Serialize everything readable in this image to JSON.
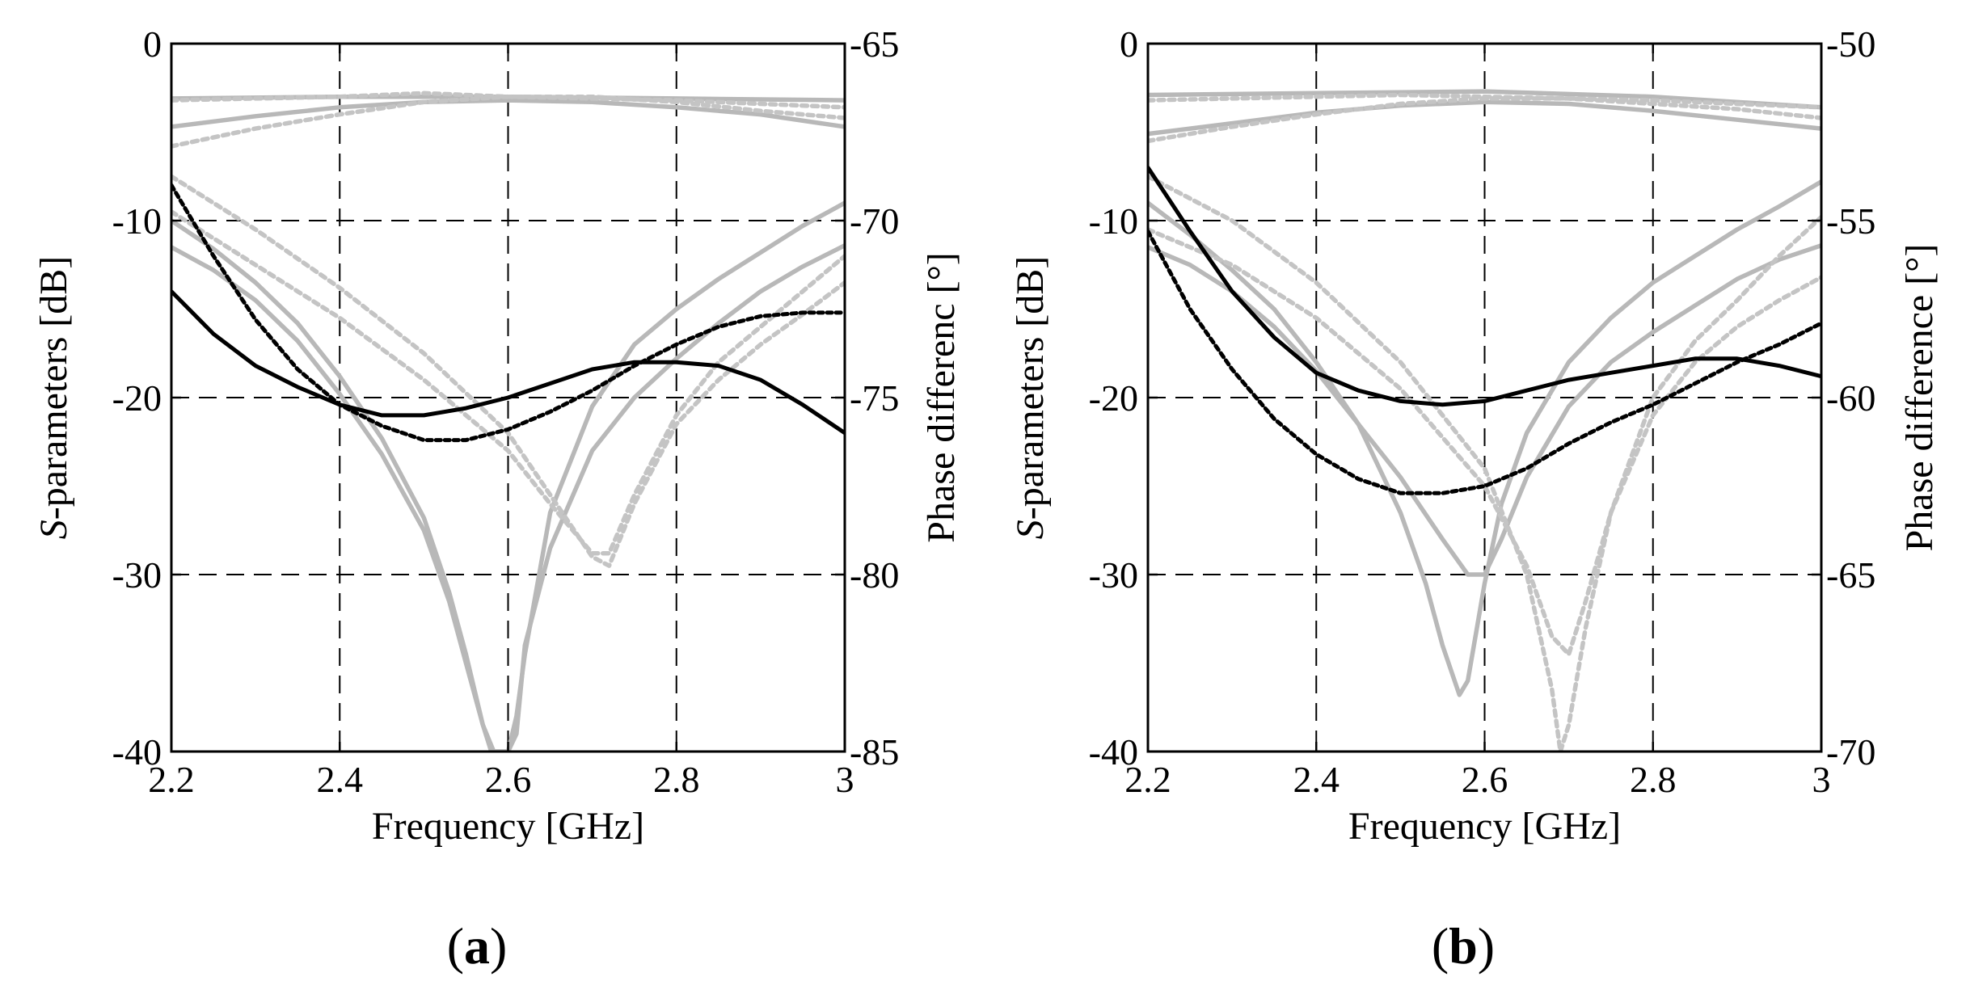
{
  "figure": {
    "panels": [
      "a",
      "b"
    ]
  },
  "chart_data": [
    {
      "type": "line",
      "panel_label": "a",
      "xlabel": "Frequency [GHz]",
      "ylabel_italic": "S",
      "ylabel_rest": "-parameters [dB]",
      "y2label": "Phase differenc [°]",
      "xlim": [
        2.2,
        3.0
      ],
      "ylim": [
        -40,
        0
      ],
      "y2lim": [
        -85,
        -65
      ],
      "xticks": [
        2.2,
        2.4,
        2.6,
        2.8,
        3.0
      ],
      "xtick_labels": [
        "2.2",
        "2.4",
        "2.6",
        "2.8",
        "3"
      ],
      "yticks": [
        0,
        -10,
        -20,
        -30,
        -40
      ],
      "ytick_labels": [
        "0",
        "-10",
        "-20",
        "-30",
        "-40"
      ],
      "y2ticks": [
        -65,
        -70,
        -75,
        -80,
        -85
      ],
      "y2tick_labels": [
        "-65",
        "-70",
        "-75",
        "-80",
        "-85"
      ],
      "grid": true,
      "series": [
        {
          "name": "S-solid-top-1",
          "axis": "left",
          "color": "#b8b8b8",
          "style": "solid",
          "x": [
            2.2,
            2.4,
            2.6,
            2.8,
            3.0
          ],
          "y": [
            -3.1,
            -3.0,
            -3.0,
            -3.1,
            -3.2
          ]
        },
        {
          "name": "S-solid-top-2",
          "axis": "left",
          "color": "#b8b8b8",
          "style": "solid",
          "x": [
            2.2,
            2.3,
            2.4,
            2.5,
            2.6,
            2.7,
            2.8,
            2.9,
            3.0
          ],
          "y": [
            -4.7,
            -4.1,
            -3.6,
            -3.3,
            -3.2,
            -3.3,
            -3.6,
            -4.0,
            -4.7
          ]
        },
        {
          "name": "S-dotted-top-1",
          "axis": "left",
          "color": "#c4c4c4",
          "style": "dotted",
          "x": [
            2.2,
            2.3,
            2.4,
            2.5,
            2.6,
            2.7,
            2.8,
            2.9,
            3.0
          ],
          "y": [
            -5.8,
            -4.8,
            -4.0,
            -3.3,
            -3.0,
            -3.0,
            -3.3,
            -3.8,
            -4.2
          ]
        },
        {
          "name": "S-dotted-top-2",
          "axis": "left",
          "color": "#c4c4c4",
          "style": "dotted",
          "x": [
            2.2,
            2.4,
            2.5,
            2.6,
            2.7,
            2.8,
            2.9,
            3.0
          ],
          "y": [
            -3.2,
            -3.0,
            -2.8,
            -3.0,
            -3.1,
            -3.2,
            -3.4,
            -3.6
          ]
        },
        {
          "name": "S-solid-dip-1",
          "axis": "left",
          "color": "#b8b8b8",
          "style": "solid",
          "x": [
            2.2,
            2.25,
            2.3,
            2.35,
            2.4,
            2.45,
            2.5,
            2.53,
            2.55,
            2.57,
            2.583,
            2.59,
            2.6,
            2.61,
            2.62,
            2.65,
            2.7,
            2.75,
            2.8,
            2.85,
            2.9,
            2.95,
            3.0
          ],
          "y": [
            -11.5,
            -12.8,
            -14.5,
            -16.8,
            -19.8,
            -23.2,
            -27.5,
            -31.5,
            -35.0,
            -38.5,
            -40.0,
            -40.0,
            -40.0,
            -39.0,
            -34.0,
            -28.5,
            -23.0,
            -20.0,
            -17.8,
            -15.8,
            -14.0,
            -12.6,
            -11.4
          ]
        },
        {
          "name": "S-solid-dip-2",
          "axis": "left",
          "color": "#b8b8b8",
          "style": "solid",
          "x": [
            2.2,
            2.25,
            2.3,
            2.35,
            2.4,
            2.45,
            2.5,
            2.53,
            2.55,
            2.57,
            2.58,
            2.6,
            2.61,
            2.62,
            2.65,
            2.7,
            2.75,
            2.8,
            2.85,
            2.9,
            2.95,
            3.0
          ],
          "y": [
            -10.0,
            -11.6,
            -13.5,
            -15.8,
            -18.8,
            -22.3,
            -26.8,
            -31.0,
            -34.5,
            -38.5,
            -40.0,
            -40.0,
            -38.0,
            -34.5,
            -26.5,
            -20.5,
            -17.0,
            -15.0,
            -13.3,
            -11.8,
            -10.3,
            -9.0
          ]
        },
        {
          "name": "S-dotted-dip-1",
          "axis": "left",
          "color": "#c4c4c4",
          "style": "dotted",
          "x": [
            2.2,
            2.3,
            2.4,
            2.5,
            2.6,
            2.65,
            2.7,
            2.72,
            2.75,
            2.8,
            2.85,
            2.9,
            2.95,
            3.0
          ],
          "y": [
            -7.5,
            -10.5,
            -13.8,
            -17.5,
            -22.0,
            -25.5,
            -29.0,
            -29.5,
            -26.0,
            -21.5,
            -19.0,
            -17.0,
            -15.3,
            -13.5
          ]
        },
        {
          "name": "S-dotted-dip-2",
          "axis": "left",
          "color": "#c4c4c4",
          "style": "dotted",
          "x": [
            2.2,
            2.3,
            2.4,
            2.5,
            2.6,
            2.65,
            2.7,
            2.72,
            2.75,
            2.8,
            2.85,
            2.9,
            2.95,
            3.0
          ],
          "y": [
            -9.5,
            -12.5,
            -15.5,
            -19.0,
            -23.0,
            -26.0,
            -28.8,
            -28.8,
            -25.5,
            -21.0,
            -18.0,
            -16.0,
            -14.0,
            -12.0
          ]
        },
        {
          "name": "Phase-solid",
          "axis": "right",
          "color": "#000000",
          "style": "solid",
          "x": [
            2.2,
            2.25,
            2.3,
            2.35,
            2.4,
            2.45,
            2.5,
            2.55,
            2.6,
            2.65,
            2.7,
            2.75,
            2.8,
            2.85,
            2.9,
            2.95,
            3.0
          ],
          "y": [
            -72.0,
            -73.2,
            -74.1,
            -74.7,
            -75.2,
            -75.5,
            -75.5,
            -75.3,
            -75.0,
            -74.6,
            -74.2,
            -74.0,
            -74.0,
            -74.1,
            -74.5,
            -75.2,
            -76.0
          ]
        },
        {
          "name": "Phase-dotted",
          "axis": "right",
          "color": "#000000",
          "style": "dotted",
          "x": [
            2.2,
            2.25,
            2.3,
            2.35,
            2.4,
            2.45,
            2.5,
            2.55,
            2.6,
            2.65,
            2.7,
            2.75,
            2.8,
            2.85,
            2.9,
            2.95,
            3.0
          ],
          "y": [
            -69.0,
            -71.0,
            -72.8,
            -74.2,
            -75.2,
            -75.8,
            -76.2,
            -76.2,
            -75.9,
            -75.4,
            -74.8,
            -74.1,
            -73.5,
            -73.0,
            -72.7,
            -72.6,
            -72.6
          ]
        }
      ]
    },
    {
      "type": "line",
      "panel_label": "b",
      "xlabel": "Frequency [GHz]",
      "ylabel_italic": "S",
      "ylabel_rest": "-parameters [dB]",
      "y2label": "Phase difference [°]",
      "xlim": [
        2.2,
        3.0
      ],
      "ylim": [
        -40,
        0
      ],
      "y2lim": [
        -70,
        -50
      ],
      "xticks": [
        2.2,
        2.4,
        2.6,
        2.8,
        3.0
      ],
      "xtick_labels": [
        "2.2",
        "2.4",
        "2.6",
        "2.8",
        "3"
      ],
      "yticks": [
        0,
        -10,
        -20,
        -30,
        -40
      ],
      "ytick_labels": [
        "0",
        "-10",
        "-20",
        "-30",
        "-40"
      ],
      "y2ticks": [
        -50,
        -55,
        -60,
        -65,
        -70
      ],
      "y2tick_labels": [
        "-50",
        "-55",
        "-60",
        "-65",
        "-70"
      ],
      "grid": true,
      "series": [
        {
          "name": "S-solid-top-1",
          "axis": "left",
          "color": "#b8b8b8",
          "style": "solid",
          "x": [
            2.2,
            2.4,
            2.6,
            2.8,
            3.0
          ],
          "y": [
            -2.9,
            -2.8,
            -2.7,
            -3.0,
            -3.6
          ]
        },
        {
          "name": "S-solid-top-2",
          "axis": "left",
          "color": "#b8b8b8",
          "style": "solid",
          "x": [
            2.2,
            2.3,
            2.4,
            2.5,
            2.6,
            2.7,
            2.8,
            2.9,
            3.0
          ],
          "y": [
            -5.1,
            -4.5,
            -3.9,
            -3.5,
            -3.3,
            -3.4,
            -3.8,
            -4.3,
            -4.8
          ]
        },
        {
          "name": "S-dotted-top-1",
          "axis": "left",
          "color": "#c4c4c4",
          "style": "dotted",
          "x": [
            2.2,
            2.3,
            2.4,
            2.5,
            2.6,
            2.7,
            2.8,
            2.9,
            3.0
          ],
          "y": [
            -5.5,
            -4.7,
            -4.0,
            -3.4,
            -3.1,
            -3.1,
            -3.4,
            -3.7,
            -4.2
          ]
        },
        {
          "name": "S-dotted-top-2",
          "axis": "left",
          "color": "#c4c4c4",
          "style": "dotted",
          "x": [
            2.2,
            2.4,
            2.5,
            2.6,
            2.7,
            2.8,
            2.9,
            3.0
          ],
          "y": [
            -3.2,
            -3.0,
            -2.9,
            -3.0,
            -3.1,
            -3.2,
            -3.4,
            -3.6
          ]
        },
        {
          "name": "S-solid-dip-1",
          "axis": "left",
          "color": "#b8b8b8",
          "style": "solid",
          "x": [
            2.2,
            2.25,
            2.3,
            2.35,
            2.4,
            2.45,
            2.5,
            2.53,
            2.55,
            2.57,
            2.58,
            2.6,
            2.62,
            2.65,
            2.7,
            2.75,
            2.8,
            2.85,
            2.9,
            2.95,
            3.0
          ],
          "y": [
            -9.0,
            -10.8,
            -12.8,
            -15.0,
            -18.0,
            -21.5,
            -26.5,
            -30.5,
            -34.0,
            -36.8,
            -36.0,
            -30.5,
            -26.0,
            -22.0,
            -18.0,
            -15.5,
            -13.5,
            -12.0,
            -10.5,
            -9.2,
            -7.8
          ]
        },
        {
          "name": "S-solid-dip-2",
          "axis": "left",
          "color": "#b8b8b8",
          "style": "solid",
          "x": [
            2.2,
            2.25,
            2.3,
            2.35,
            2.4,
            2.45,
            2.5,
            2.55,
            2.58,
            2.6,
            2.62,
            2.65,
            2.7,
            2.75,
            2.8,
            2.85,
            2.9,
            2.95,
            3.0
          ],
          "y": [
            -11.5,
            -12.5,
            -14.0,
            -16.0,
            -18.5,
            -21.5,
            -24.5,
            -28.0,
            -30.0,
            -30.0,
            -28.0,
            -24.5,
            -20.5,
            -18.0,
            -16.3,
            -14.8,
            -13.3,
            -12.2,
            -11.4
          ]
        },
        {
          "name": "S-dotted-dip-1",
          "axis": "left",
          "color": "#c4c4c4",
          "style": "dotted",
          "x": [
            2.2,
            2.3,
            2.4,
            2.5,
            2.6,
            2.65,
            2.68,
            2.69,
            2.7,
            2.72,
            2.75,
            2.8,
            2.85,
            2.9,
            2.95,
            3.0
          ],
          "y": [
            -7.5,
            -10.0,
            -13.5,
            -18.0,
            -24.0,
            -30.0,
            -36.5,
            -40.0,
            -38.5,
            -33.0,
            -26.5,
            -20.0,
            -16.8,
            -14.5,
            -12.0,
            -9.8
          ]
        },
        {
          "name": "S-dotted-dip-2",
          "axis": "left",
          "color": "#c4c4c4",
          "style": "dotted",
          "x": [
            2.2,
            2.3,
            2.4,
            2.5,
            2.6,
            2.65,
            2.68,
            2.7,
            2.72,
            2.75,
            2.8,
            2.85,
            2.9,
            2.95,
            3.0
          ],
          "y": [
            -10.5,
            -12.5,
            -15.5,
            -19.5,
            -25.0,
            -29.5,
            -33.5,
            -34.5,
            -31.5,
            -26.5,
            -21.0,
            -18.0,
            -16.0,
            -14.5,
            -13.2
          ]
        },
        {
          "name": "Phase-solid",
          "axis": "right",
          "color": "#000000",
          "style": "solid",
          "x": [
            2.2,
            2.25,
            2.3,
            2.35,
            2.4,
            2.45,
            2.5,
            2.55,
            2.6,
            2.65,
            2.7,
            2.75,
            2.8,
            2.85,
            2.9,
            2.95,
            3.0
          ],
          "y": [
            -53.5,
            -55.3,
            -57.0,
            -58.3,
            -59.3,
            -59.8,
            -60.1,
            -60.2,
            -60.1,
            -59.8,
            -59.5,
            -59.3,
            -59.1,
            -58.9,
            -58.9,
            -59.1,
            -59.4
          ]
        },
        {
          "name": "Phase-dotted",
          "axis": "right",
          "color": "#000000",
          "style": "dotted",
          "x": [
            2.2,
            2.25,
            2.3,
            2.35,
            2.4,
            2.45,
            2.5,
            2.55,
            2.6,
            2.65,
            2.7,
            2.75,
            2.8,
            2.85,
            2.9,
            2.95,
            3.0
          ],
          "y": [
            -55.3,
            -57.5,
            -59.2,
            -60.6,
            -61.6,
            -62.3,
            -62.7,
            -62.7,
            -62.5,
            -62.0,
            -61.3,
            -60.7,
            -60.2,
            -59.6,
            -59.0,
            -58.5,
            -57.9
          ]
        }
      ]
    }
  ]
}
